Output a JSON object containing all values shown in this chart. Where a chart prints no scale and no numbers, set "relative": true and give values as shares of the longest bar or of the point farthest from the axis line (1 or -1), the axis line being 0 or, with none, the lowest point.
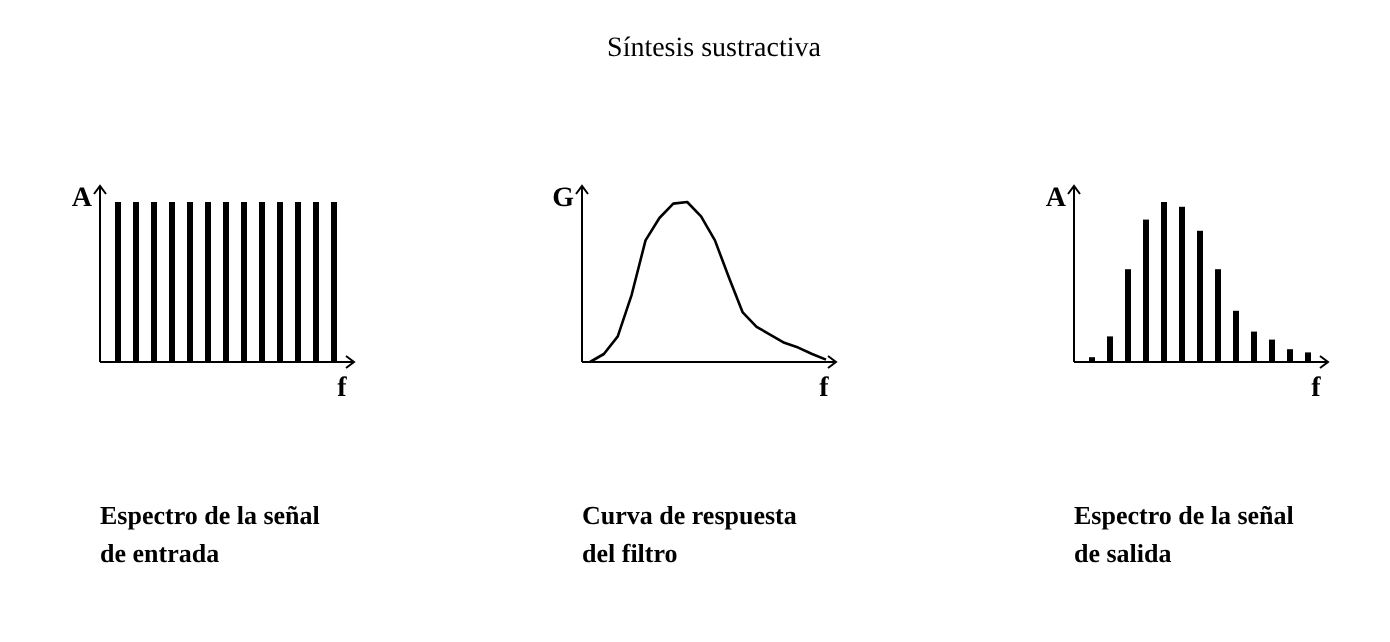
{
  "chart_data": [
    {
      "type": "bar",
      "relative": true,
      "ylabel": "A",
      "xlabel": "f",
      "color": "#000000",
      "categories": [
        null,
        null,
        null,
        null,
        null,
        null,
        null,
        null,
        null,
        null,
        null,
        null,
        null
      ],
      "values": [
        1,
        1,
        1,
        1,
        1,
        1,
        1,
        1,
        1,
        1,
        1,
        1,
        1
      ],
      "annotations": [
        "Espectro de la señal de entrada"
      ]
    },
    {
      "type": "line",
      "relative": true,
      "title": "Síntesis sustractiva",
      "ylabel": "G",
      "xlabel": "f",
      "categories": [
        null,
        null,
        null,
        null,
        null,
        null,
        null,
        null,
        null,
        null,
        null,
        null,
        null,
        null,
        null,
        null,
        null,
        null
      ],
      "series": [
        {
          "color": "#000000",
          "values": [
            0,
            0.05,
            0.16,
            0.42,
            0.76,
            0.9,
            0.99,
            1,
            0.91,
            0.76,
            0.53,
            0.31,
            0.22,
            0.17,
            0.12,
            0.09,
            0.05,
            0.015
          ]
        }
      ],
      "annotations": [
        "Curva de respuesta del filtro"
      ]
    },
    {
      "type": "bar",
      "relative": true,
      "ylabel": "A",
      "xlabel": "f",
      "color": "#000000",
      "categories": [
        null,
        null,
        null,
        null,
        null,
        null,
        null,
        null,
        null,
        null,
        null,
        null,
        null
      ],
      "values": [
        0.03,
        0.16,
        0.58,
        0.89,
        1,
        0.97,
        0.82,
        0.58,
        0.32,
        0.19,
        0.14,
        0.08,
        0.06
      ],
      "annotations": [
        "Espectro de la señal de salida"
      ]
    }
  ]
}
